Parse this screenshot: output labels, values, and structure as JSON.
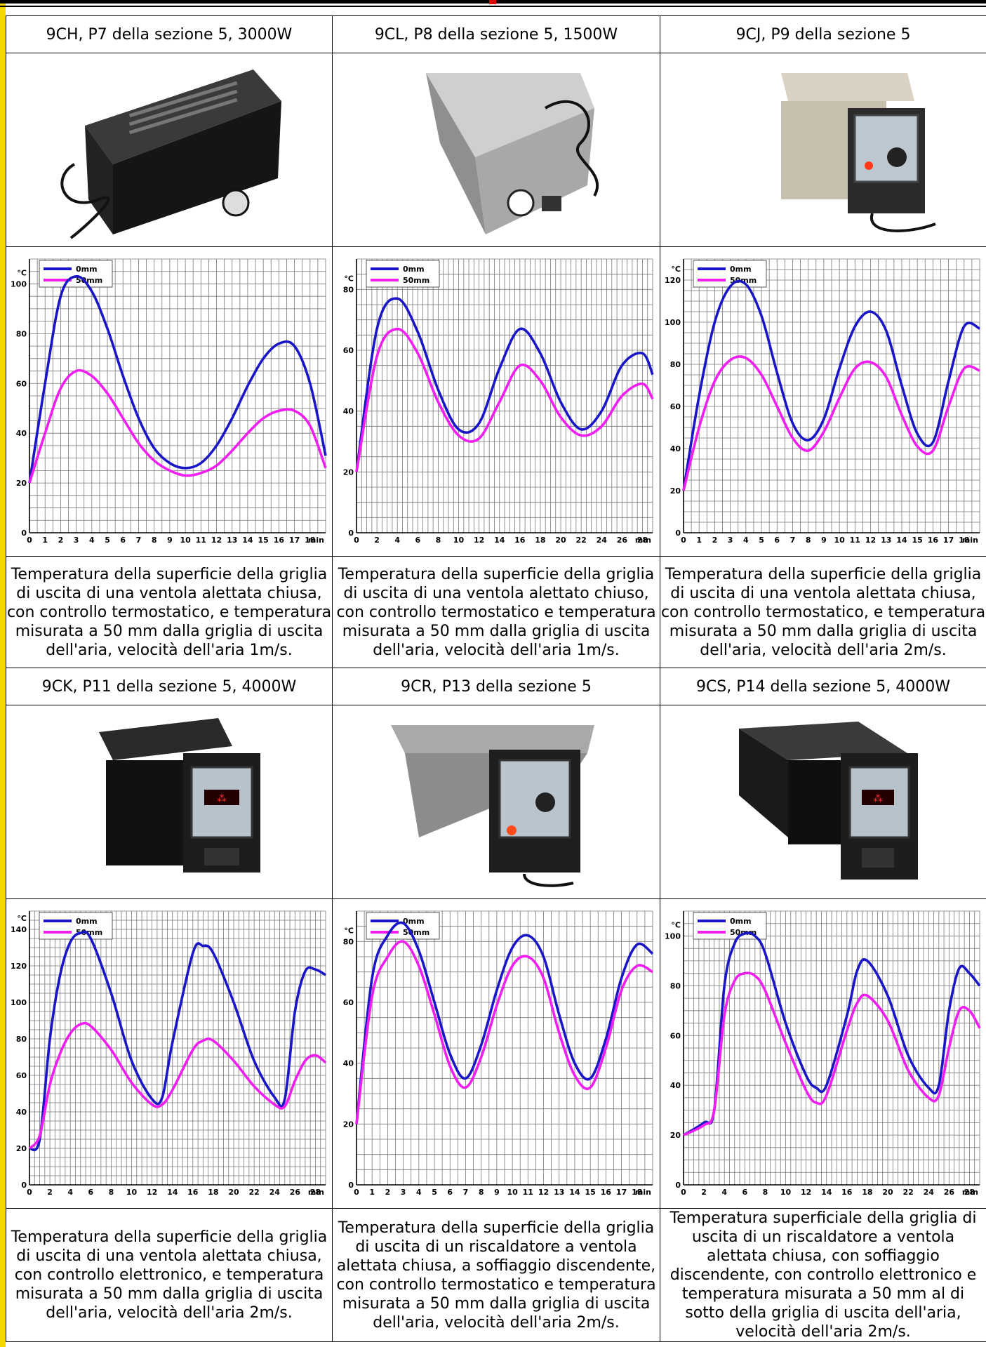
{
  "colors": {
    "series_0mm": "#1a16c8",
    "series_50mm": "#f01ef0",
    "accent_bar": "#f5d800"
  },
  "legend": {
    "a": "0mm",
    "b": "50mm"
  },
  "panels": [
    {
      "header": "9CH, P7 della sezione 5, 3000W",
      "caption": "Temperatura della superficie della griglia di uscita di una ventola alettata chiusa, con controllo termostatico, e temperatura misurata a 50 mm dalla griglia di uscita dell'aria, velocità dell'aria 1m/s.",
      "photo_icon": "black-fan-heater-icon"
    },
    {
      "header": "9CL, P8 della sezione 5, 1500W",
      "caption": "Temperatura della superficie della griglia di uscita di una ventola alettato chiuso, con controllo termostatico e temperatura misurata a 50 mm dalla griglia di uscita dell'aria, velocità dell'aria 1m/s.",
      "photo_icon": "steel-fan-heater-icon"
    },
    {
      "header": "9CJ, P9 della sezione 5",
      "caption": "Temperatura della superficie della griglia di uscita di una ventola alettata chiusa, con controllo termostatico, e temperatura misurata a 50 mm dalla griglia di uscita dell'aria, velocità dell'aria 2m/s.",
      "photo_icon": "beige-fan-heater-icon"
    },
    {
      "header": "9CK, P11 della sezione 5, 4000W",
      "caption": "Temperatura della superficie della griglia di uscita di una ventola alettata chiusa, con controllo elettronico, e temperatura misurata a 50 mm dalla griglia di uscita dell'aria, velocità dell'aria 2m/s.",
      "photo_icon": "black-electronic-fan-heater-icon"
    },
    {
      "header": "9CR, P13 della sezione 5",
      "caption": "Temperatura della superficie della griglia di uscita di un riscaldatore a ventola alettata chiusa, a soffiaggio discendente, con controllo termostatico e temperatura misurata a 50 mm dalla griglia di uscita dell'aria, velocità dell'aria 2m/s.",
      "photo_icon": "downflow-fan-heater-icon"
    },
    {
      "header": "9CS, P14 della sezione 5, 4000W",
      "caption": "Temperatura superficiale della griglia di uscita di un riscaldatore a ventola alettata chiusa, con soffiaggio discendente, con controllo elettronico e temperatura misurata a 50 mm al di sotto della griglia di uscita dell'aria, velocità dell'aria 2m/s.",
      "photo_icon": "black-downflow-fan-heater-icon"
    }
  ],
  "chart_data": [
    {
      "type": "line",
      "xlabel": "min",
      "ylabel": "°C",
      "xmax": 19,
      "ymax": 110,
      "xticks": [
        0,
        1,
        2,
        3,
        4,
        5,
        6,
        7,
        8,
        9,
        10,
        11,
        12,
        13,
        14,
        15,
        16,
        17,
        18
      ],
      "yticks": [
        0,
        20,
        40,
        60,
        80,
        100
      ],
      "series": [
        {
          "name": "0mm",
          "x": [
            0,
            1,
            2,
            3,
            4,
            5,
            6,
            7,
            8,
            9,
            10,
            11,
            12,
            13,
            14,
            15,
            16,
            17,
            18,
            19
          ],
          "y": [
            20,
            60,
            95,
            103,
            97,
            82,
            63,
            46,
            34,
            28,
            26,
            28,
            35,
            46,
            59,
            70,
            76,
            75,
            60,
            31
          ]
        },
        {
          "name": "50mm",
          "x": [
            0,
            1,
            2,
            3,
            4,
            5,
            6,
            7,
            8,
            9,
            10,
            11,
            12,
            13,
            14,
            15,
            16,
            17,
            18,
            19
          ],
          "y": [
            20,
            40,
            58,
            65,
            63,
            56,
            46,
            36,
            29,
            25,
            23,
            24,
            27,
            33,
            40,
            46,
            49,
            49,
            43,
            26
          ]
        }
      ]
    },
    {
      "type": "line",
      "xlabel": "min",
      "ylabel": "°C",
      "xmax": 29,
      "ymax": 90,
      "xticks": [
        0,
        2,
        4,
        6,
        8,
        10,
        12,
        14,
        16,
        18,
        20,
        22,
        24,
        26,
        28
      ],
      "yticks": [
        0,
        20,
        40,
        60,
        80
      ],
      "series": [
        {
          "name": "0mm",
          "x": [
            0,
            2,
            4,
            6,
            8,
            10,
            12,
            14,
            16,
            18,
            20,
            22,
            24,
            26,
            28,
            29
          ],
          "y": [
            20,
            67,
            77,
            66,
            47,
            34,
            36,
            54,
            67,
            59,
            43,
            34,
            40,
            55,
            59,
            52
          ]
        },
        {
          "name": "50mm",
          "x": [
            0,
            2,
            4,
            6,
            8,
            10,
            12,
            14,
            16,
            18,
            20,
            22,
            24,
            26,
            28,
            29
          ],
          "y": [
            20,
            58,
            67,
            59,
            43,
            32,
            31,
            43,
            55,
            50,
            38,
            32,
            35,
            45,
            49,
            44
          ]
        }
      ]
    },
    {
      "type": "line",
      "xlabel": "min",
      "ylabel": "°C",
      "xmax": 19,
      "ymax": 130,
      "xticks": [
        0,
        1,
        2,
        3,
        4,
        5,
        6,
        7,
        8,
        9,
        10,
        11,
        12,
        13,
        14,
        15,
        16,
        17,
        18
      ],
      "yticks": [
        0,
        20,
        40,
        60,
        80,
        100,
        120
      ],
      "series": [
        {
          "name": "0mm",
          "x": [
            0,
            1,
            2,
            3,
            4,
            5,
            6,
            7,
            8,
            9,
            10,
            11,
            12,
            13,
            14,
            15,
            16,
            17,
            18,
            19
          ],
          "y": [
            20,
            65,
            100,
            117,
            118,
            103,
            76,
            52,
            44,
            54,
            78,
            98,
            105,
            96,
            70,
            47,
            43,
            72,
            98,
            97
          ]
        },
        {
          "name": "50mm",
          "x": [
            0,
            1,
            2,
            3,
            4,
            5,
            6,
            7,
            8,
            9,
            10,
            11,
            12,
            13,
            14,
            15,
            16,
            17,
            18,
            19
          ],
          "y": [
            20,
            50,
            72,
            82,
            83,
            75,
            60,
            45,
            39,
            48,
            64,
            78,
            81,
            74,
            56,
            41,
            39,
            60,
            78,
            77
          ]
        }
      ]
    },
    {
      "type": "line",
      "xlabel": "min",
      "ylabel": "°C",
      "xmax": 29,
      "ymax": 150,
      "xticks": [
        0,
        2,
        4,
        6,
        8,
        10,
        12,
        14,
        16,
        18,
        20,
        22,
        24,
        26,
        28
      ],
      "yticks": [
        0,
        20,
        40,
        60,
        80,
        100,
        120,
        140
      ],
      "series": [
        {
          "name": "0mm",
          "x": [
            0,
            1,
            2,
            3,
            4,
            5,
            6,
            8,
            10,
            12,
            13,
            14,
            16,
            17,
            18,
            20,
            22,
            24,
            25,
            26,
            27,
            28,
            29
          ],
          "y": [
            20,
            25,
            80,
            115,
            133,
            138,
            135,
            105,
            68,
            47,
            48,
            78,
            127,
            131,
            127,
            100,
            68,
            48,
            47,
            95,
            117,
            118,
            115
          ]
        },
        {
          "name": "50mm",
          "x": [
            0,
            1,
            2,
            3,
            4,
            5,
            6,
            8,
            10,
            12,
            13,
            14,
            16,
            17,
            18,
            20,
            22,
            24,
            25,
            26,
            27,
            28,
            29
          ],
          "y": [
            20,
            27,
            55,
            72,
            83,
            88,
            87,
            74,
            56,
            44,
            44,
            52,
            74,
            79,
            79,
            68,
            54,
            44,
            43,
            57,
            68,
            71,
            67
          ]
        }
      ]
    },
    {
      "type": "line",
      "xlabel": "min",
      "ylabel": "°C",
      "xmax": 19,
      "ymax": 90,
      "xticks": [
        0,
        1,
        2,
        3,
        4,
        5,
        6,
        7,
        8,
        9,
        10,
        11,
        12,
        13,
        14,
        15,
        16,
        17,
        18
      ],
      "yticks": [
        0,
        20,
        40,
        60,
        80
      ],
      "series": [
        {
          "name": "0mm",
          "x": [
            0,
            1,
            2,
            3,
            4,
            5,
            6,
            7,
            8,
            9,
            10,
            11,
            12,
            13,
            14,
            15,
            16,
            17,
            18,
            19
          ],
          "y": [
            20,
            68,
            82,
            86,
            77,
            60,
            43,
            35,
            46,
            64,
            78,
            82,
            75,
            56,
            40,
            35,
            48,
            68,
            79,
            76
          ]
        },
        {
          "name": "50mm",
          "x": [
            0,
            1,
            2,
            3,
            4,
            5,
            6,
            7,
            8,
            9,
            10,
            11,
            12,
            13,
            14,
            15,
            16,
            17,
            18,
            19
          ],
          "y": [
            20,
            62,
            75,
            80,
            72,
            56,
            39,
            32,
            42,
            59,
            72,
            75,
            68,
            50,
            36,
            32,
            45,
            64,
            72,
            70
          ]
        }
      ]
    },
    {
      "type": "line",
      "xlabel": "min",
      "ylabel": "°C",
      "xmax": 29,
      "ymax": 110,
      "xticks": [
        0,
        2,
        4,
        6,
        8,
        10,
        12,
        14,
        16,
        18,
        20,
        22,
        24,
        26,
        28
      ],
      "yticks": [
        0,
        20,
        40,
        60,
        80,
        100
      ],
      "series": [
        {
          "name": "0mm",
          "x": [
            0,
            2,
            3,
            4,
            5,
            6,
            7,
            8,
            10,
            12,
            13,
            14,
            16,
            17,
            18,
            20,
            22,
            24,
            25,
            26,
            27,
            28,
            29
          ],
          "y": [
            20,
            25,
            30,
            80,
            97,
            101,
            100,
            93,
            65,
            44,
            39,
            40,
            68,
            86,
            90,
            76,
            52,
            39,
            40,
            70,
            87,
            85,
            80
          ]
        },
        {
          "name": "50mm",
          "x": [
            0,
            2,
            3,
            4,
            5,
            6,
            7,
            8,
            10,
            12,
            13,
            14,
            16,
            17,
            18,
            20,
            22,
            24,
            25,
            26,
            27,
            28,
            29
          ],
          "y": [
            20,
            24,
            30,
            68,
            82,
            85,
            84,
            78,
            57,
            38,
            33,
            36,
            62,
            73,
            76,
            66,
            46,
            35,
            36,
            55,
            70,
            70,
            63
          ]
        }
      ]
    }
  ]
}
